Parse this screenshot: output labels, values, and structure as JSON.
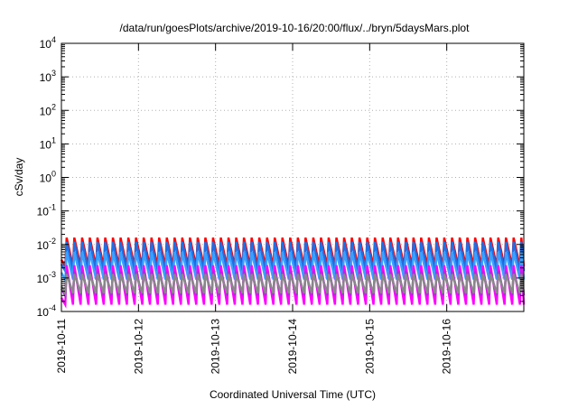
{
  "chart_data": {
    "type": "line",
    "title": "/data/run/goesPlots/archive/2019-10-16/20:00/flux/../bryn/5daysMars.plot",
    "xlabel": "Coordinated Universal Time (UTC)",
    "ylabel": "cSv/day",
    "y_scale": "log",
    "ylim": [
      0.0001,
      10000
    ],
    "xlim": [
      "2019-10-11",
      "2019-10-17"
    ],
    "y_ticks": [
      {
        "base": "10",
        "exp": "-4"
      },
      {
        "base": "10",
        "exp": "-3"
      },
      {
        "base": "10",
        "exp": "-2"
      },
      {
        "base": "10",
        "exp": "-1"
      },
      {
        "base": "10",
        "exp": "0"
      },
      {
        "base": "10",
        "exp": "1"
      },
      {
        "base": "10",
        "exp": "2"
      },
      {
        "base": "10",
        "exp": "3"
      },
      {
        "base": "10",
        "exp": "4"
      }
    ],
    "x_ticks": [
      "2019-10-11",
      "2019-10-12",
      "2019-10-13",
      "2019-10-14",
      "2019-10-15",
      "2019-10-16"
    ],
    "grid": true,
    "legend": "none",
    "pattern": {
      "cycle_days": 0.1,
      "phase_days": 0.05
    },
    "series": [
      {
        "color": "#ff0000",
        "peak": 0.016,
        "trough": 0.0022
      },
      {
        "color": "#1e6fe6",
        "peak": 0.012,
        "trough": 0.0016
      },
      {
        "color": "#3aa0ff",
        "peak": 0.006,
        "trough": 0.0009
      },
      {
        "color": "#ff00ff",
        "peak": 0.0024,
        "trough": 0.00016
      },
      {
        "color": "#b02bd8",
        "peak": 0.0016,
        "trough": 0.0003
      },
      {
        "color": "#888888",
        "peak": 0.0013,
        "trough": 0.00035
      }
    ]
  }
}
